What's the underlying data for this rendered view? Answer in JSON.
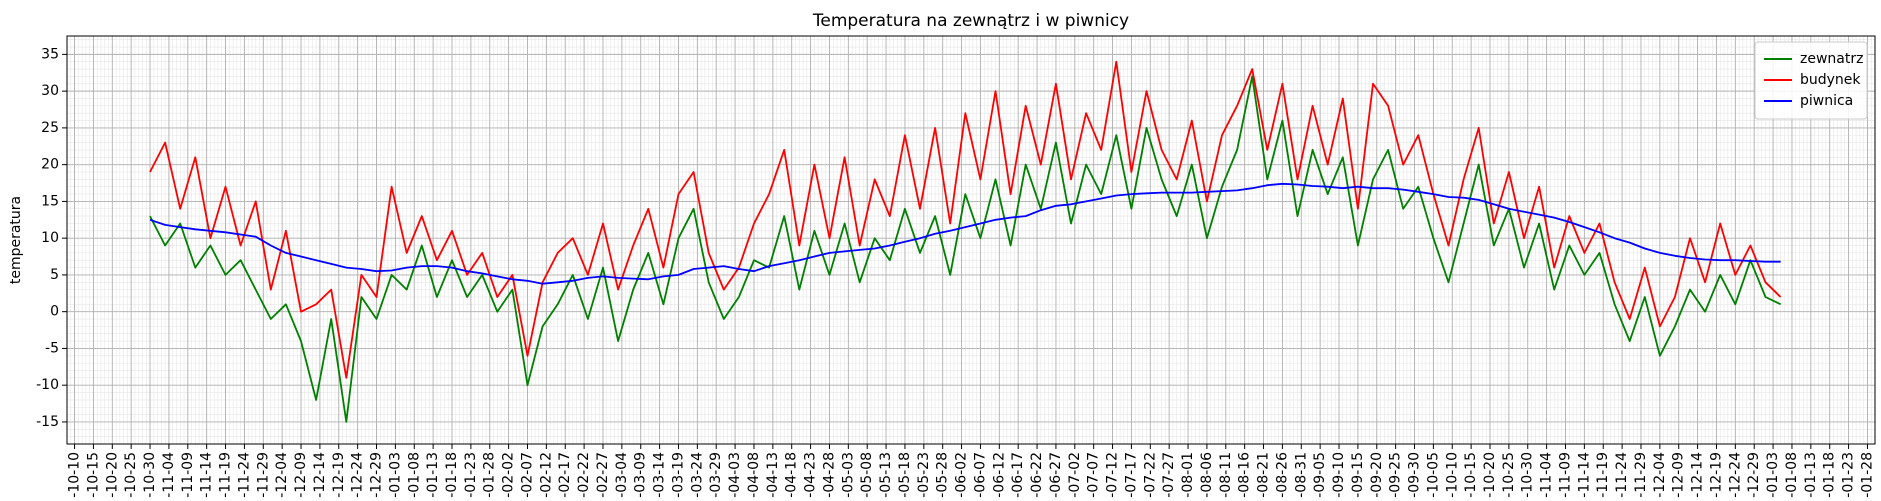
{
  "chart_data": {
    "type": "line",
    "title": "Temperatura na zewnątrz i w piwnicy",
    "y_label": "temperatura",
    "x": [
      20,
      24,
      28,
      32,
      36,
      40,
      44,
      48,
      52,
      56,
      60,
      64,
      68,
      72,
      76,
      80,
      84,
      88,
      92,
      96,
      100,
      104,
      108,
      112,
      116,
      120,
      124,
      128,
      132,
      136,
      140,
      144,
      148,
      152,
      156,
      160,
      164,
      168,
      172,
      176,
      180,
      184,
      188,
      192,
      196,
      200,
      204,
      208,
      212,
      216,
      220,
      224,
      228,
      232,
      236,
      240,
      244,
      248,
      252,
      256,
      260,
      264,
      268,
      272,
      276,
      280,
      284,
      288,
      292,
      296,
      300,
      304,
      308,
      312,
      316,
      320,
      324,
      328,
      332,
      336,
      340,
      344,
      348,
      352,
      356,
      360,
      364,
      368,
      372,
      376,
      380,
      384,
      388,
      392,
      396,
      400,
      404,
      408,
      412,
      416,
      420,
      424,
      428,
      432,
      436,
      440,
      444,
      448,
      452
    ],
    "series": [
      {
        "name": "zewnatrz",
        "color": "#008000",
        "values": [
          13,
          9,
          12,
          6,
          9,
          5,
          7,
          3,
          -1,
          1,
          -4,
          -12,
          -1,
          -15,
          2,
          -1,
          5,
          3,
          9,
          2,
          7,
          2,
          5,
          0,
          3,
          -10,
          -2,
          1,
          5,
          -1,
          6,
          -4,
          3,
          8,
          1,
          10,
          14,
          4,
          -1,
          2,
          7,
          6,
          13,
          3,
          11,
          5,
          12,
          4,
          10,
          7,
          14,
          8,
          13,
          5,
          16,
          10,
          18,
          9,
          20,
          14,
          23,
          12,
          20,
          16,
          24,
          14,
          25,
          18,
          13,
          20,
          10,
          17,
          22,
          32,
          18,
          26,
          13,
          22,
          16,
          21,
          9,
          18,
          22,
          14,
          17,
          10,
          4,
          12,
          20,
          9,
          14,
          6,
          12,
          3,
          9,
          5,
          8,
          1,
          -4,
          2,
          -6,
          -2,
          3,
          0,
          5,
          1,
          7,
          2,
          1
        ]
      },
      {
        "name": "budynek",
        "color": "#ff0000",
        "values": [
          19,
          23,
          14,
          21,
          10,
          17,
          9,
          15,
          3,
          11,
          0,
          1,
          3,
          -9,
          5,
          2,
          17,
          8,
          13,
          7,
          11,
          5,
          8,
          2,
          5,
          -6,
          4,
          8,
          10,
          5,
          12,
          3,
          9,
          14,
          6,
          16,
          19,
          8,
          3,
          6,
          12,
          16,
          22,
          9,
          20,
          10,
          21,
          9,
          18,
          13,
          24,
          14,
          25,
          12,
          27,
          18,
          30,
          16,
          28,
          20,
          31,
          18,
          27,
          22,
          34,
          19,
          30,
          22,
          18,
          26,
          15,
          24,
          28,
          33,
          22,
          31,
          18,
          28,
          20,
          29,
          14,
          31,
          28,
          20,
          24,
          16,
          9,
          18,
          25,
          12,
          19,
          10,
          17,
          6,
          13,
          8,
          12,
          4,
          -1,
          6,
          -2,
          2,
          10,
          4,
          12,
          5,
          9,
          4,
          2
        ]
      },
      {
        "name": "piwnica",
        "color": "#0000ff",
        "values": [
          12.5,
          11.8,
          11.5,
          11.2,
          11,
          10.8,
          10.5,
          10.2,
          9,
          8,
          7.5,
          7,
          6.5,
          6,
          5.8,
          5.5,
          5.6,
          6,
          6.2,
          6.2,
          6,
          5.5,
          5.2,
          4.8,
          4.4,
          4.2,
          3.8,
          4,
          4.2,
          4.6,
          4.8,
          4.6,
          4.5,
          4.4,
          4.8,
          5,
          5.8,
          6,
          6.2,
          5.8,
          5.5,
          6.2,
          6.6,
          7,
          7.5,
          8,
          8.2,
          8.4,
          8.6,
          9,
          9.5,
          10,
          10.6,
          11,
          11.5,
          12,
          12.5,
          12.8,
          13,
          13.8,
          14.4,
          14.6,
          15,
          15.4,
          15.8,
          16,
          16.1,
          16.2,
          16.2,
          16.2,
          16.3,
          16.4,
          16.5,
          16.8,
          17.2,
          17.4,
          17.3,
          17.1,
          17,
          16.8,
          17,
          16.8,
          16.8,
          16.6,
          16.3,
          16,
          15.6,
          15.5,
          15.2,
          14.6,
          14,
          13.6,
          13.2,
          12.8,
          12.2,
          11.5,
          10.8,
          10,
          9.4,
          8.6,
          8,
          7.6,
          7.3,
          7.1,
          7,
          7,
          6.9,
          6.8,
          6.8
        ]
      }
    ],
    "xlim": [
      -2,
      477
    ],
    "ylim": [
      -18,
      37.5
    ],
    "yticks": [
      -15,
      -10,
      -5,
      0,
      5,
      10,
      15,
      20,
      25,
      30,
      35
    ],
    "xticks": [
      {
        "value": 0,
        "label": "-10-10"
      },
      {
        "value": 5,
        "label": "-10-15"
      },
      {
        "value": 10,
        "label": "-10-20"
      },
      {
        "value": 15,
        "label": "-10-25"
      },
      {
        "value": 20,
        "label": "-10-30"
      },
      {
        "value": 25,
        "label": "-11-04"
      },
      {
        "value": 30,
        "label": "-11-09"
      },
      {
        "value": 35,
        "label": "-11-14"
      },
      {
        "value": 40,
        "label": "-11-19"
      },
      {
        "value": 45,
        "label": "-11-24"
      },
      {
        "value": 50,
        "label": "-11-29"
      },
      {
        "value": 55,
        "label": "-12-04"
      },
      {
        "value": 60,
        "label": "-12-09"
      },
      {
        "value": 65,
        "label": "-12-14"
      },
      {
        "value": 70,
        "label": "-12-19"
      },
      {
        "value": 75,
        "label": "-12-24"
      },
      {
        "value": 80,
        "label": "-12-29"
      },
      {
        "value": 85,
        "label": "-01-03"
      },
      {
        "value": 90,
        "label": "-01-08"
      },
      {
        "value": 95,
        "label": "-01-13"
      },
      {
        "value": 100,
        "label": "-01-18"
      },
      {
        "value": 105,
        "label": "-01-23"
      },
      {
        "value": 110,
        "label": "-01-28"
      },
      {
        "value": 115,
        "label": "-02-02"
      },
      {
        "value": 120,
        "label": "-02-07"
      },
      {
        "value": 125,
        "label": "-02-12"
      },
      {
        "value": 130,
        "label": "-02-17"
      },
      {
        "value": 135,
        "label": "-02-22"
      },
      {
        "value": 140,
        "label": "-02-27"
      },
      {
        "value": 145,
        "label": "-03-04"
      },
      {
        "value": 150,
        "label": "-03-09"
      },
      {
        "value": 155,
        "label": "-03-14"
      },
      {
        "value": 160,
        "label": "-03-19"
      },
      {
        "value": 165,
        "label": "-03-24"
      },
      {
        "value": 170,
        "label": "-03-29"
      },
      {
        "value": 175,
        "label": "-04-03"
      },
      {
        "value": 180,
        "label": "-04-08"
      },
      {
        "value": 185,
        "label": "-04-13"
      },
      {
        "value": 190,
        "label": "-04-18"
      },
      {
        "value": 195,
        "label": "-04-23"
      },
      {
        "value": 200,
        "label": "-04-28"
      },
      {
        "value": 205,
        "label": "-05-03"
      },
      {
        "value": 210,
        "label": "-05-08"
      },
      {
        "value": 215,
        "label": "-05-13"
      },
      {
        "value": 220,
        "label": "-05-18"
      },
      {
        "value": 225,
        "label": "-05-23"
      },
      {
        "value": 230,
        "label": "-05-28"
      },
      {
        "value": 235,
        "label": "-06-02"
      },
      {
        "value": 240,
        "label": "-06-07"
      },
      {
        "value": 245,
        "label": "-06-12"
      },
      {
        "value": 250,
        "label": "-06-17"
      },
      {
        "value": 255,
        "label": "-06-22"
      },
      {
        "value": 260,
        "label": "-06-27"
      },
      {
        "value": 265,
        "label": "-07-02"
      },
      {
        "value": 270,
        "label": "-07-07"
      },
      {
        "value": 275,
        "label": "-07-12"
      },
      {
        "value": 280,
        "label": "-07-17"
      },
      {
        "value": 285,
        "label": "-07-22"
      },
      {
        "value": 290,
        "label": "-07-27"
      },
      {
        "value": 295,
        "label": "-08-01"
      },
      {
        "value": 300,
        "label": "-08-06"
      },
      {
        "value": 305,
        "label": "-08-11"
      },
      {
        "value": 310,
        "label": "-08-16"
      },
      {
        "value": 315,
        "label": "-08-21"
      },
      {
        "value": 320,
        "label": "-08-26"
      },
      {
        "value": 325,
        "label": "-08-31"
      },
      {
        "value": 330,
        "label": "-09-05"
      },
      {
        "value": 335,
        "label": "-09-10"
      },
      {
        "value": 340,
        "label": "-09-15"
      },
      {
        "value": 345,
        "label": "-09-20"
      },
      {
        "value": 350,
        "label": "-09-25"
      },
      {
        "value": 355,
        "label": "-09-30"
      },
      {
        "value": 360,
        "label": "-10-05"
      },
      {
        "value": 365,
        "label": "-10-10"
      },
      {
        "value": 370,
        "label": "-10-15"
      },
      {
        "value": 375,
        "label": "-10-20"
      },
      {
        "value": 380,
        "label": "-10-25"
      },
      {
        "value": 385,
        "label": "-10-30"
      },
      {
        "value": 390,
        "label": "-11-04"
      },
      {
        "value": 395,
        "label": "-11-09"
      },
      {
        "value": 400,
        "label": "-11-14"
      },
      {
        "value": 405,
        "label": "-11-19"
      },
      {
        "value": 410,
        "label": "-11-24"
      },
      {
        "value": 415,
        "label": "-11-29"
      },
      {
        "value": 420,
        "label": "-12-04"
      },
      {
        "value": 425,
        "label": "-12-09"
      },
      {
        "value": 430,
        "label": "-12-14"
      },
      {
        "value": 435,
        "label": "-12-19"
      },
      {
        "value": 440,
        "label": "-12-24"
      },
      {
        "value": 445,
        "label": "-12-29"
      },
      {
        "value": 450,
        "label": "-01-03"
      },
      {
        "value": 455,
        "label": "-01-08"
      },
      {
        "value": 460,
        "label": "-01-13"
      },
      {
        "value": 465,
        "label": "-01-18"
      },
      {
        "value": 470,
        "label": "-01-23"
      },
      {
        "value": 475,
        "label": "-01-28"
      }
    ],
    "grid": true,
    "minor_grid": true,
    "legend": "upper right"
  }
}
